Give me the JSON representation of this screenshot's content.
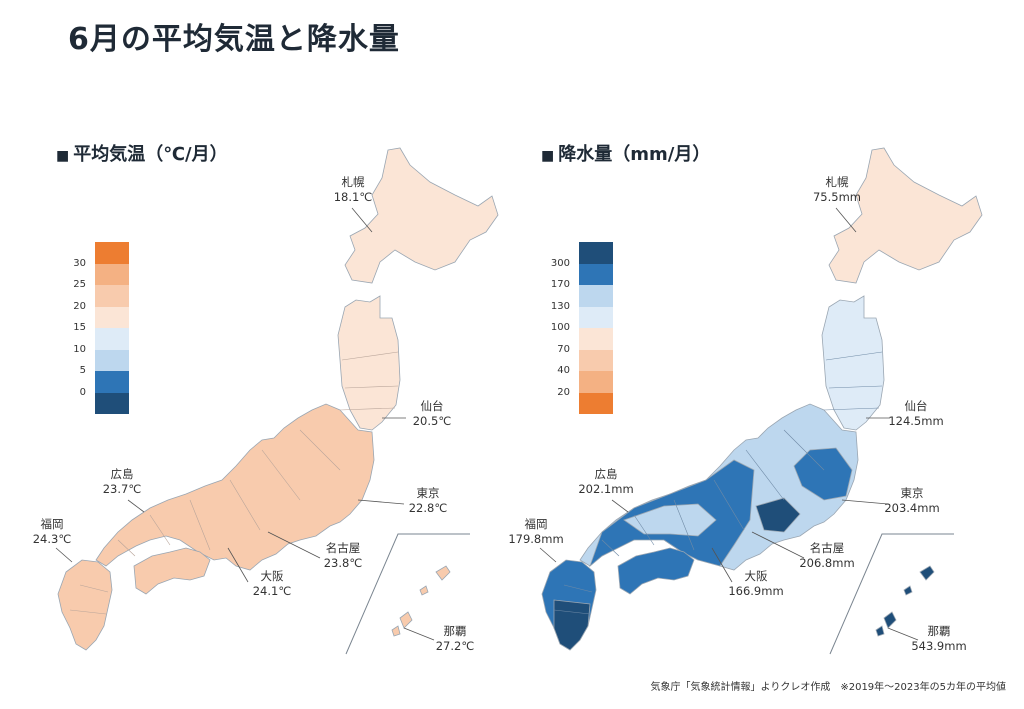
{
  "title": "6月の平均気温と降水量",
  "source_note": "気象庁「気象統計情報」よりクレオ作成　※2019年～2023年の5カ年の平均値",
  "panels": {
    "temperature": {
      "heading": "平均気温（℃/月）",
      "legend_ticks": [
        "30",
        "25",
        "20",
        "15",
        "10",
        "5",
        "0"
      ],
      "legend_colors": [
        "#ed7d31",
        "#f4b183",
        "#f8cbad",
        "#fbe5d6",
        "#deebf7",
        "#bdd7ee",
        "#2e75b6",
        "#1f4e79"
      ],
      "cities": [
        {
          "name": "札幌",
          "value": "18.1℃"
        },
        {
          "name": "仙台",
          "value": "20.5℃"
        },
        {
          "name": "東京",
          "value": "22.8℃"
        },
        {
          "name": "名古屋",
          "value": "23.8℃"
        },
        {
          "name": "大阪",
          "value": "24.1℃"
        },
        {
          "name": "広島",
          "value": "23.7℃"
        },
        {
          "name": "福岡",
          "value": "24.3℃"
        },
        {
          "name": "那覇",
          "value": "27.2℃"
        }
      ]
    },
    "precipitation": {
      "heading": "降水量（mm/月）",
      "legend_ticks": [
        "300",
        "170",
        "130",
        "100",
        "70",
        "40",
        "20"
      ],
      "legend_colors": [
        "#1f4e79",
        "#2e75b6",
        "#bdd7ee",
        "#deebf7",
        "#fbe5d6",
        "#f8cbad",
        "#f4b183",
        "#ed7d31"
      ],
      "cities": [
        {
          "name": "札幌",
          "value": "75.5mm"
        },
        {
          "name": "仙台",
          "value": "124.5mm"
        },
        {
          "name": "東京",
          "value": "203.4mm"
        },
        {
          "name": "名古屋",
          "value": "206.8mm"
        },
        {
          "name": "大阪",
          "value": "166.9mm"
        },
        {
          "name": "広島",
          "value": "202.1mm"
        },
        {
          "name": "福岡",
          "value": "179.8mm"
        },
        {
          "name": "那覇",
          "value": "543.9mm"
        }
      ]
    }
  },
  "region_colors": {
    "temp_hokkaido": "#fbe5d6",
    "temp_tohoku_n": "#fbe5d6",
    "temp_mainland": "#f8cbad",
    "prec_hokkaido": "#fbe5d6",
    "prec_tohoku": "#deebf7",
    "prec_chubu": "#bdd7ee",
    "prec_kanto": "#2e75b6",
    "prec_kinki": "#2e75b6",
    "prec_chugoku": "#2e75b6",
    "prec_setouchi": "#bdd7ee",
    "prec_shikoku": "#2e75b6",
    "prec_kyushu_s": "#1f4e79",
    "prec_okinawa": "#1f4e79"
  }
}
